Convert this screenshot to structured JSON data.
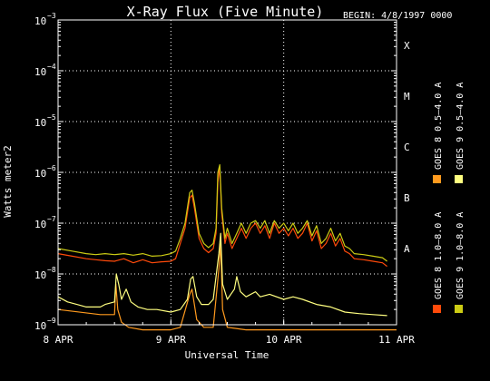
{
  "chart_data": {
    "type": "line",
    "title": "X-Ray Flux (Five Minute)",
    "begin_label": "BEGIN: 4/8/1997 0000",
    "xlabel": "Universal Time",
    "ylabel": "Watts meter2",
    "y_scale": "log",
    "ylim": [
      1e-09,
      0.001
    ],
    "xlim_hours": [
      0,
      72
    ],
    "x_ticks": [
      {
        "hour": 0,
        "label": "8 APR"
      },
      {
        "hour": 24,
        "label": "9 APR"
      },
      {
        "hour": 48,
        "label": "10 APR"
      },
      {
        "hour": 72,
        "label": "11 APR"
      }
    ],
    "y_ticks": [
      {
        "exp": -9,
        "base": "10",
        "exponent": "−9"
      },
      {
        "exp": -8,
        "base": "10",
        "exponent": "−8"
      },
      {
        "exp": -7,
        "base": "10",
        "exponent": "−7"
      },
      {
        "exp": -6,
        "base": "10",
        "exponent": "−6"
      },
      {
        "exp": -5,
        "base": "10",
        "exponent": "−5"
      },
      {
        "exp": -4,
        "base": "10",
        "exponent": "−4"
      },
      {
        "exp": -3,
        "base": "10",
        "exponent": "−3"
      }
    ],
    "flare_classes": [
      {
        "label": "X",
        "exp": -3.5
      },
      {
        "label": "M",
        "exp": -4.5
      },
      {
        "label": "C",
        "exp": -5.5
      },
      {
        "label": "B",
        "exp": -6.5
      },
      {
        "label": "A",
        "exp": -7.5
      }
    ],
    "grid": true,
    "legend_position": "right",
    "series": [
      {
        "name": "GOES 8 1.0–8.0 A",
        "color": "#ff4a0a",
        "points": [
          [
            0,
            -7.6
          ],
          [
            3,
            -7.65
          ],
          [
            6,
            -7.7
          ],
          [
            8,
            -7.72
          ],
          [
            10,
            -7.74
          ],
          [
            12,
            -7.75
          ],
          [
            14,
            -7.7
          ],
          [
            16,
            -7.78
          ],
          [
            18,
            -7.72
          ],
          [
            20,
            -7.78
          ],
          [
            22,
            -7.76
          ],
          [
            24,
            -7.75
          ],
          [
            25,
            -7.7
          ],
          [
            26,
            -7.4
          ],
          [
            27,
            -7.1
          ],
          [
            28,
            -6.5
          ],
          [
            28.5,
            -6.45
          ],
          [
            29,
            -6.7
          ],
          [
            30,
            -7.3
          ],
          [
            31,
            -7.5
          ],
          [
            32,
            -7.58
          ],
          [
            33,
            -7.5
          ],
          [
            33.6,
            -7.2
          ],
          [
            34,
            -6.2
          ],
          [
            34.4,
            -5.9
          ],
          [
            34.8,
            -6.8
          ],
          [
            35.5,
            -7.4
          ],
          [
            36,
            -7.2
          ],
          [
            37,
            -7.5
          ],
          [
            38,
            -7.3
          ],
          [
            39,
            -7.1
          ],
          [
            40,
            -7.3
          ],
          [
            41,
            -7.1
          ],
          [
            42,
            -7.0
          ],
          [
            43,
            -7.2
          ],
          [
            44,
            -7.05
          ],
          [
            45,
            -7.3
          ],
          [
            46,
            -7.0
          ],
          [
            47,
            -7.2
          ],
          [
            48,
            -7.1
          ],
          [
            49,
            -7.25
          ],
          [
            50,
            -7.1
          ],
          [
            51,
            -7.3
          ],
          [
            52,
            -7.2
          ],
          [
            53,
            -7.0
          ],
          [
            54,
            -7.35
          ],
          [
            55,
            -7.15
          ],
          [
            56,
            -7.5
          ],
          [
            57,
            -7.4
          ],
          [
            58,
            -7.2
          ],
          [
            59,
            -7.45
          ],
          [
            60,
            -7.3
          ],
          [
            61,
            -7.55
          ],
          [
            62,
            -7.6
          ],
          [
            63,
            -7.7
          ],
          [
            65,
            -7.72
          ],
          [
            67,
            -7.75
          ],
          [
            69,
            -7.78
          ],
          [
            70,
            -7.85
          ]
        ]
      },
      {
        "name": "GOES 8 0.5–4.0 A",
        "color": "#ff9a1e",
        "points": [
          [
            0,
            -8.7
          ],
          [
            9,
            -8.8
          ],
          [
            12,
            -8.8
          ],
          [
            12.3,
            -8.2
          ],
          [
            12.7,
            -8.7
          ],
          [
            13.5,
            -8.95
          ],
          [
            15,
            -9.05
          ],
          [
            18,
            -9.1
          ],
          [
            24,
            -9.1
          ],
          [
            26,
            -9.05
          ],
          [
            28,
            -8.4
          ],
          [
            28.5,
            -8.3
          ],
          [
            29.5,
            -8.9
          ],
          [
            31,
            -9.05
          ],
          [
            33,
            -9.05
          ],
          [
            34.2,
            -7.9
          ],
          [
            34.6,
            -7.4
          ],
          [
            35,
            -8.7
          ],
          [
            36,
            -9.05
          ],
          [
            40,
            -9.1
          ],
          [
            48,
            -9.1
          ],
          [
            60,
            -9.1
          ],
          [
            72,
            -9.1
          ]
        ]
      },
      {
        "name": "GOES 9 1.0–8.0 A",
        "color": "#cccc14",
        "points": [
          [
            0,
            -7.5
          ],
          [
            3,
            -7.55
          ],
          [
            6,
            -7.6
          ],
          [
            8,
            -7.62
          ],
          [
            10,
            -7.6
          ],
          [
            12,
            -7.62
          ],
          [
            14,
            -7.6
          ],
          [
            16,
            -7.63
          ],
          [
            18,
            -7.6
          ],
          [
            20,
            -7.65
          ],
          [
            22,
            -7.64
          ],
          [
            24,
            -7.6
          ],
          [
            25,
            -7.55
          ],
          [
            26,
            -7.3
          ],
          [
            27,
            -7.0
          ],
          [
            28,
            -6.4
          ],
          [
            28.5,
            -6.35
          ],
          [
            29,
            -6.6
          ],
          [
            30,
            -7.2
          ],
          [
            31,
            -7.4
          ],
          [
            32,
            -7.48
          ],
          [
            33,
            -7.4
          ],
          [
            33.6,
            -7.1
          ],
          [
            34,
            -6.0
          ],
          [
            34.4,
            -5.85
          ],
          [
            34.8,
            -6.7
          ],
          [
            35.5,
            -7.3
          ],
          [
            36,
            -7.1
          ],
          [
            37,
            -7.4
          ],
          [
            38,
            -7.2
          ],
          [
            39,
            -7.0
          ],
          [
            40,
            -7.2
          ],
          [
            41,
            -7.0
          ],
          [
            42,
            -6.95
          ],
          [
            43,
            -7.1
          ],
          [
            44,
            -6.95
          ],
          [
            45,
            -7.2
          ],
          [
            46,
            -6.95
          ],
          [
            47,
            -7.1
          ],
          [
            48,
            -7.0
          ],
          [
            49,
            -7.15
          ],
          [
            50,
            -7.0
          ],
          [
            51,
            -7.2
          ],
          [
            52,
            -7.1
          ],
          [
            53,
            -6.95
          ],
          [
            54,
            -7.25
          ],
          [
            55,
            -7.05
          ],
          [
            56,
            -7.4
          ],
          [
            57,
            -7.3
          ],
          [
            58,
            -7.1
          ],
          [
            59,
            -7.35
          ],
          [
            60,
            -7.2
          ],
          [
            61,
            -7.45
          ],
          [
            62,
            -7.5
          ],
          [
            63,
            -7.6
          ],
          [
            65,
            -7.62
          ],
          [
            67,
            -7.65
          ],
          [
            69,
            -7.68
          ],
          [
            70,
            -7.75
          ]
        ]
      },
      {
        "name": "GOES 9 0.5–4.0 A",
        "color": "#ffff80",
        "points": [
          [
            0,
            -8.45
          ],
          [
            2,
            -8.55
          ],
          [
            4,
            -8.6
          ],
          [
            6,
            -8.65
          ],
          [
            9,
            -8.65
          ],
          [
            10,
            -8.6
          ],
          [
            12,
            -8.55
          ],
          [
            12.4,
            -8.0
          ],
          [
            12.9,
            -8.2
          ],
          [
            13.5,
            -8.5
          ],
          [
            14.5,
            -8.3
          ],
          [
            15.5,
            -8.55
          ],
          [
            17,
            -8.65
          ],
          [
            19,
            -8.7
          ],
          [
            21,
            -8.7
          ],
          [
            24,
            -8.75
          ],
          [
            26,
            -8.7
          ],
          [
            27.5,
            -8.5
          ],
          [
            28.2,
            -8.1
          ],
          [
            28.7,
            -8.05
          ],
          [
            29.5,
            -8.45
          ],
          [
            30.5,
            -8.6
          ],
          [
            32,
            -8.6
          ],
          [
            33,
            -8.5
          ],
          [
            34.2,
            -7.6
          ],
          [
            34.6,
            -7.2
          ],
          [
            35,
            -8.2
          ],
          [
            36,
            -8.5
          ],
          [
            37.5,
            -8.3
          ],
          [
            38,
            -8.05
          ],
          [
            38.8,
            -8.35
          ],
          [
            40,
            -8.45
          ],
          [
            42,
            -8.35
          ],
          [
            43,
            -8.45
          ],
          [
            45,
            -8.4
          ],
          [
            48,
            -8.5
          ],
          [
            50,
            -8.45
          ],
          [
            52,
            -8.5
          ],
          [
            55,
            -8.6
          ],
          [
            58,
            -8.65
          ],
          [
            61,
            -8.75
          ],
          [
            64,
            -8.78
          ],
          [
            67,
            -8.8
          ],
          [
            70,
            -8.82
          ]
        ]
      }
    ]
  }
}
